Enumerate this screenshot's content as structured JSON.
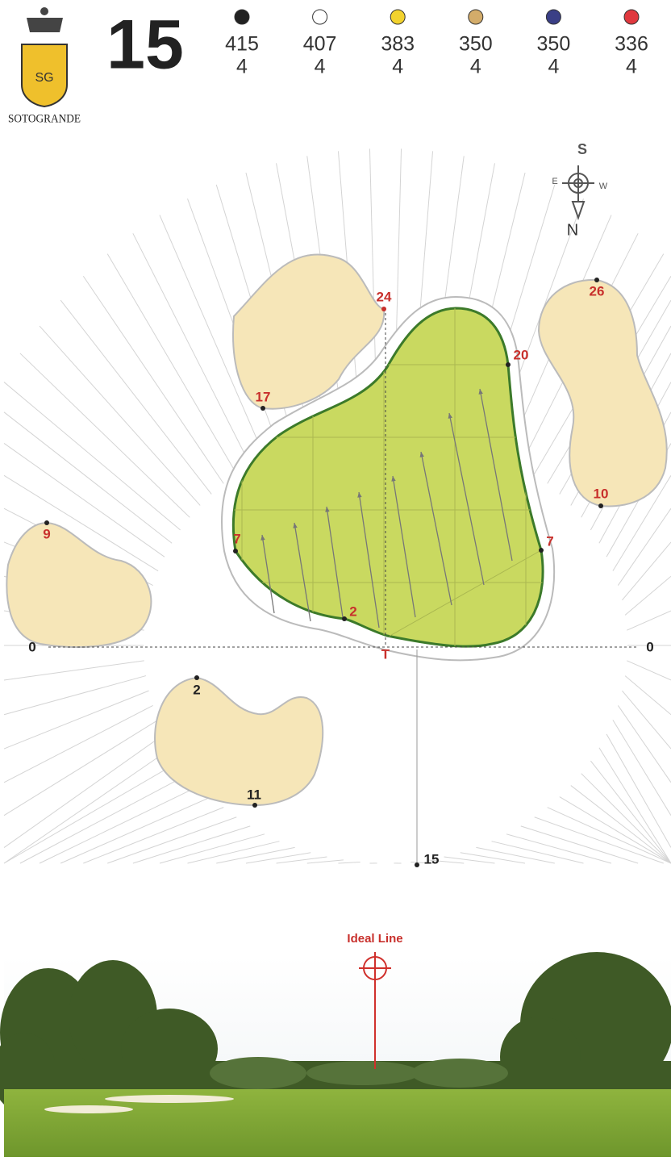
{
  "header": {
    "hole": "15",
    "logo": "SOTOGRANDE",
    "tees": [
      {
        "color": "#222222",
        "yards": 415,
        "par": 4
      },
      {
        "color": "#ffffff",
        "yards": 407,
        "par": 4
      },
      {
        "color": "#f2d22e",
        "yards": 383,
        "par": 4
      },
      {
        "color": "#d3ac6a",
        "yards": 350,
        "par": 4
      },
      {
        "color": "#3a3f86",
        "yards": 350,
        "par": 4
      },
      {
        "color": "#e0383e",
        "yards": 336,
        "par": 4
      }
    ]
  },
  "compass": {
    "top": "S",
    "right": "W",
    "left": "E",
    "bottom": "N"
  },
  "green": {
    "back": "24",
    "back_left_bunker": "17",
    "right_top": "20",
    "right_bunker_top": "26",
    "right_bunker_bottom": "10",
    "left_bunker": "9",
    "left_edge": "7",
    "right_edge": "7",
    "front": "2",
    "left_zero": "0",
    "right_zero": "0",
    "tee_mark": "T",
    "front_bunker_top": "2",
    "front_bunker_bottom": "11",
    "approach": "15"
  },
  "ideal_line": "Ideal Line"
}
